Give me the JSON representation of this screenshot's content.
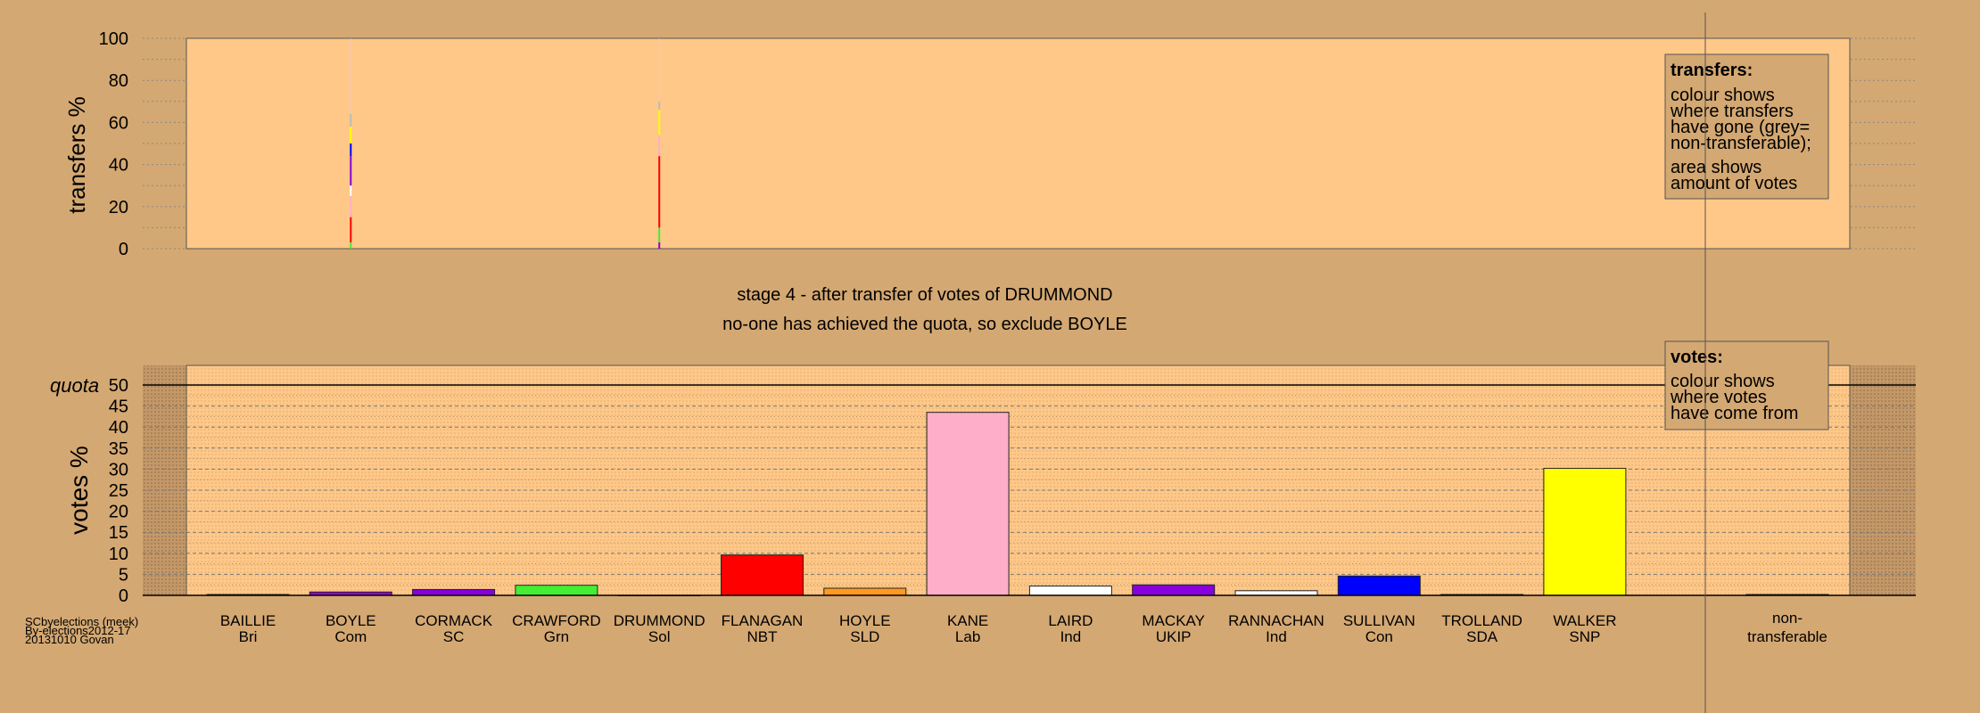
{
  "chart_data": [
    {
      "type": "bar",
      "panel": "transfers",
      "ylabel": "transfers %",
      "ylim": [
        0,
        100
      ],
      "yticks": [
        0,
        20,
        40,
        60,
        80,
        100
      ],
      "legend": {
        "title": "transfers:",
        "lines": [
          "colour shows",
          "where transfers",
          "have gone (grey=",
          "non-transferable);",
          "area shows",
          "amount of votes"
        ]
      },
      "transfer_strips": [
        {
          "source": "BOYLE",
          "segments": [
            {
              "to": "CRAWFORD",
              "value": 3,
              "color": "#44ee33"
            },
            {
              "to": "FLANAGAN",
              "value": 12,
              "color": "#ff0000"
            },
            {
              "to": "KANE",
              "value": 10,
              "color": "#ffaec9"
            },
            {
              "to": "LAIRD",
              "value": 5,
              "color": "#ffffff"
            },
            {
              "to": "MACKAY",
              "value": 14,
              "color": "#8800dd"
            },
            {
              "to": "SULLIVAN",
              "value": 6,
              "color": "#0000ff"
            },
            {
              "to": "WALKER",
              "value": 8,
              "color": "#ffff00"
            },
            {
              "to": "non-transferable",
              "value": 6,
              "color": "#bbbbbb"
            }
          ]
        },
        {
          "source": "DRUMMOND",
          "segments": [
            {
              "to": "CORMACK",
              "value": 3,
              "color": "#8800dd"
            },
            {
              "to": "CRAWFORD",
              "value": 7,
              "color": "#44ee33"
            },
            {
              "to": "FLANAGAN",
              "value": 34,
              "color": "#ff0000"
            },
            {
              "to": "KANE",
              "value": 10,
              "color": "#ffaec9"
            },
            {
              "to": "WALKER",
              "value": 12,
              "color": "#ffff00"
            },
            {
              "to": "non-transferable",
              "value": 4,
              "color": "#bbbbbb"
            }
          ]
        }
      ]
    },
    {
      "type": "bar",
      "panel": "votes",
      "ylabel": "votes %",
      "ylim": [
        0,
        50
      ],
      "yticks": [
        0,
        5,
        10,
        15,
        20,
        25,
        30,
        35,
        40,
        45,
        50
      ],
      "quota": 50,
      "quota_label": "quota",
      "legend": {
        "title": "votes:",
        "lines": [
          "colour shows",
          "where votes",
          "have come from"
        ]
      },
      "categories": [
        {
          "name": "BAILLIE",
          "party": "Bri",
          "value": 0.2,
          "color": "#ffffff"
        },
        {
          "name": "BOYLE",
          "party": "Com",
          "value": 0.8,
          "color": "#9900cc"
        },
        {
          "name": "CORMACK",
          "party": "SC",
          "value": 1.4,
          "color": "#8800dd"
        },
        {
          "name": "CRAWFORD",
          "party": "Grn",
          "value": 2.4,
          "color": "#44ee33"
        },
        {
          "name": "DRUMMOND",
          "party": "Sol",
          "value": 0.0,
          "color": "#cc3366"
        },
        {
          "name": "FLANAGAN",
          "party": "NBT",
          "value": 9.6,
          "color": "#ff0000"
        },
        {
          "name": "HOYLE",
          "party": "SLD",
          "value": 1.7,
          "color": "#ff9922"
        },
        {
          "name": "KANE",
          "party": "Lab",
          "value": 43.5,
          "color": "#ffaec9"
        },
        {
          "name": "LAIRD",
          "party": "Ind",
          "value": 2.2,
          "color": "#ffffff"
        },
        {
          "name": "MACKAY",
          "party": "UKIP",
          "value": 2.5,
          "color": "#8800dd"
        },
        {
          "name": "RANNACHAN",
          "party": "Ind",
          "value": 1.1,
          "color": "#ffffff"
        },
        {
          "name": "SULLIVAN",
          "party": "Con",
          "value": 4.6,
          "color": "#0000ff"
        },
        {
          "name": "TROLLAND",
          "party": "SDA",
          "value": 0.2,
          "color": "#ffffff"
        },
        {
          "name": "WALKER",
          "party": "SNP",
          "value": 30.2,
          "color": "#ffff00"
        }
      ],
      "nontransferable": {
        "label": "non-",
        "label2": "transferable",
        "value": 0.2,
        "color": "#bbbbbb"
      }
    }
  ],
  "caption": {
    "line1": "stage 4 - after transfer of votes of DRUMMOND",
    "line2": "no-one has achieved the quota, so exclude BOYLE"
  },
  "footer": {
    "line1": "SCbyelections (meek)",
    "line2": "By-elections2012-17",
    "line3": "20131010 Govan"
  },
  "colors": {
    "background": "#d4a872",
    "panel": "#ffc888"
  }
}
